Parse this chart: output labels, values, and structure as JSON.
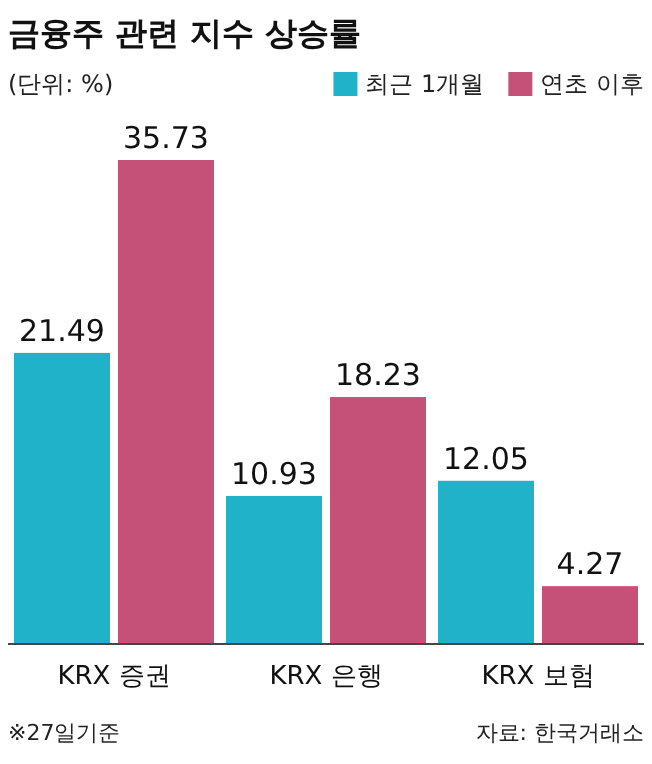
{
  "chart_data": {
    "type": "bar",
    "title": "금융주 관련 지수 상승률",
    "subtitle": "(단위: %)",
    "categories": [
      "KRX 증권",
      "KRX 은행",
      "KRX 보험"
    ],
    "series": [
      {
        "name": "최근 1개월",
        "color": "#1fb2c9",
        "values": [
          21.49,
          10.93,
          12.05
        ]
      },
      {
        "name": "연초 이후",
        "color": "#c55078",
        "values": [
          35.73,
          18.23,
          4.27
        ]
      }
    ],
    "data_labels": true,
    "legend": "top right",
    "annotations": [
      "※27일기준",
      "자료: 한국거래소"
    ]
  }
}
